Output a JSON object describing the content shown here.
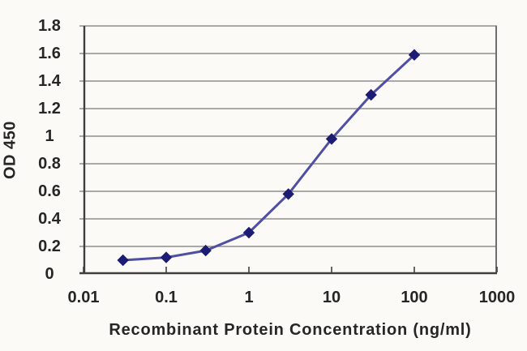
{
  "chart_data": {
    "type": "line",
    "xlabel": "Recombinant Protein Concentration (ng/ml)",
    "ylabel": "OD 450",
    "x_scale": "log",
    "xlim": [
      0.01,
      1000
    ],
    "ylim": [
      0,
      1.8
    ],
    "x_ticks": [
      0.01,
      0.1,
      1,
      10,
      100,
      1000
    ],
    "x_tick_labels": [
      "0.01",
      "0.1",
      "1",
      "10",
      "100",
      "1000"
    ],
    "y_ticks": [
      0,
      0.2,
      0.4,
      0.6,
      0.8,
      1,
      1.2,
      1.4,
      1.6,
      1.8
    ],
    "y_tick_labels": [
      "0",
      "0.2",
      "0.4",
      "0.6",
      "0.8",
      "1",
      "1.2",
      "1.4",
      "1.6",
      "1.8"
    ],
    "grid": "horizontal",
    "legend": "none",
    "series": [
      {
        "marker": "diamond",
        "x": [
          0.03,
          0.1,
          0.3,
          1,
          3,
          10,
          30,
          100
        ],
        "y": [
          0.1,
          0.12,
          0.17,
          0.3,
          0.58,
          0.98,
          1.3,
          1.59
        ]
      }
    ],
    "colors": {
      "line": "#4f4fa5",
      "marker": "#1c1c74",
      "gridline": "#8e8e8e",
      "axis": "#3f3f3f",
      "plot_border": "#6f6f6f",
      "text": "#262626",
      "background": "#fbfaf6"
    }
  }
}
